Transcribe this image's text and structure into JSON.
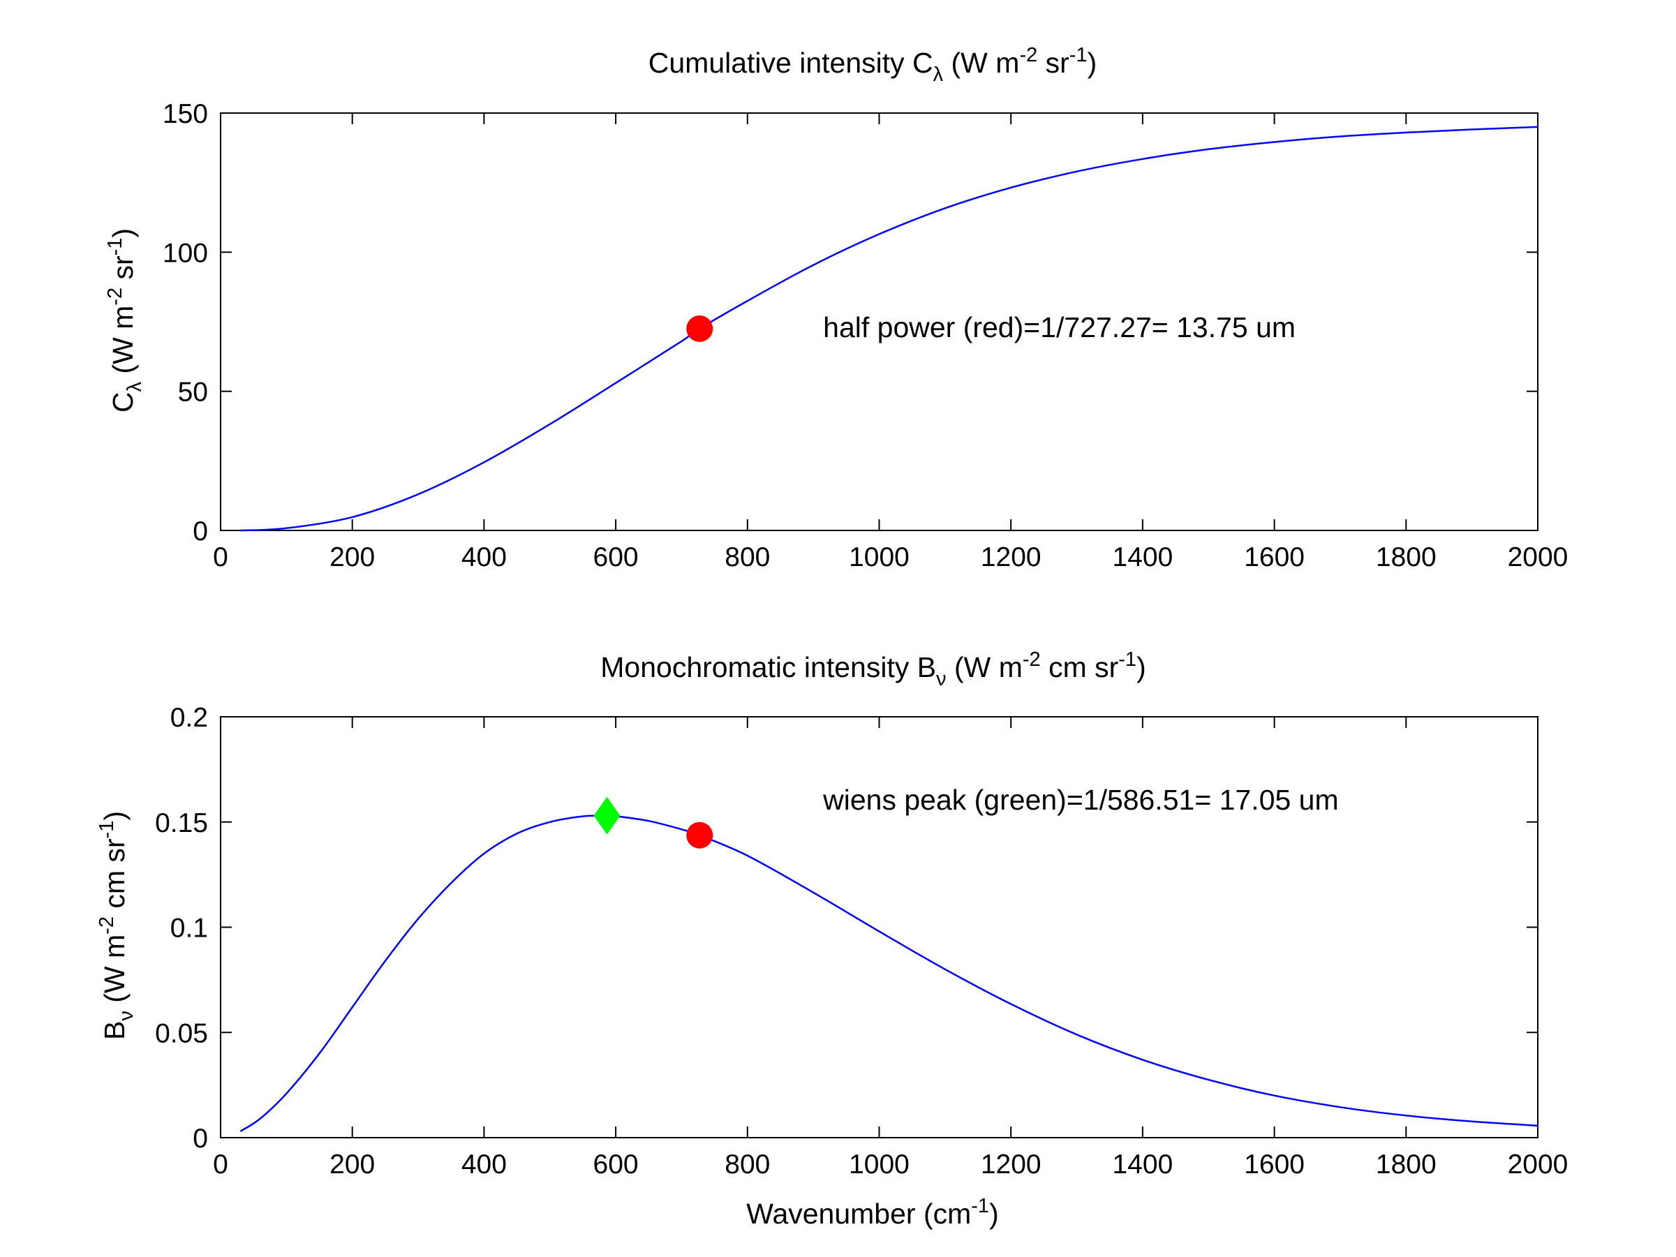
{
  "colors": {
    "series": "#0000ff",
    "half_power_marker": "#ff0000",
    "wien_peak_marker": "#00ff00"
  },
  "chart_data": [
    {
      "type": "line",
      "title": "Cumulative intensity C",
      "title_subscript": "λ",
      "title_units": " (W m",
      "title_sup1": "-2",
      "title_units2": " sr",
      "title_sup2": "-1",
      "title_end": ")",
      "ylabel": "C",
      "ylabel_subscript": "λ",
      "ylabel_units": " (W m",
      "ylabel_sup1": "-2",
      "ylabel_units2": " sr",
      "ylabel_sup2": "-1",
      "ylabel_end": ")",
      "xlim": [
        0,
        2000
      ],
      "ylim": [
        0,
        150
      ],
      "x_ticks": [
        "0",
        "200",
        "400",
        "600",
        "800",
        "1000",
        "1200",
        "1400",
        "1600",
        "1800",
        "2000"
      ],
      "y_ticks": [
        "0",
        "50",
        "100",
        "150"
      ],
      "x": [
        30,
        100,
        200,
        300,
        400,
        500,
        600,
        700,
        727.27,
        800,
        900,
        1000,
        1100,
        1200,
        1300,
        1400,
        1500,
        1600,
        1700,
        1800,
        1900,
        2000
      ],
      "y": [
        0.0,
        0.8,
        4.8,
        13.0,
        24.5,
        38.2,
        53.0,
        68.0,
        72.5,
        82.5,
        95.4,
        106.5,
        115.8,
        123.2,
        129.0,
        133.5,
        137.0,
        139.6,
        141.6,
        143.0,
        144.1,
        145.0
      ],
      "markers": [
        {
          "name": "half power",
          "x": 727.27,
          "y": 72.5,
          "shape": "circle",
          "color": "#ff0000"
        }
      ],
      "annotation": "half power (red)=1/727.27= 13.75 um",
      "annotation_pos": [
        900,
        73
      ]
    },
    {
      "type": "line",
      "title": "Monochromatic intensity B",
      "title_subscript": "ν",
      "title_units": " (W m",
      "title_sup1": "-2",
      "title_units2": " cm sr",
      "title_sup2": "-1",
      "title_end": ")",
      "ylabel": "B",
      "ylabel_subscript": "ν",
      "ylabel_units": " (W m",
      "ylabel_sup1": "-2",
      "ylabel_units2": " cm sr",
      "ylabel_sup2": "-1",
      "ylabel_end": ")",
      "xlabel": "Wavenumber (cm",
      "xlabel_sup": "-1",
      "xlabel_end": ")",
      "xlim": [
        0,
        2000
      ],
      "ylim": [
        0,
        0.2
      ],
      "x_ticks": [
        "0",
        "200",
        "400",
        "600",
        "800",
        "1000",
        "1200",
        "1400",
        "1600",
        "1800",
        "2000"
      ],
      "y_ticks": [
        "0",
        "0.05",
        "0.1",
        "0.15",
        "0.2"
      ],
      "x": [
        30,
        60,
        100,
        150,
        200,
        250,
        300,
        350,
        400,
        450,
        500,
        550,
        586.51,
        600,
        650,
        700,
        727.27,
        800,
        900,
        1000,
        1100,
        1200,
        1300,
        1400,
        1500,
        1600,
        1700,
        1800,
        1900,
        2000
      ],
      "y": [
        0.003,
        0.009,
        0.021,
        0.04,
        0.062,
        0.084,
        0.104,
        0.121,
        0.135,
        0.1445,
        0.15,
        0.1527,
        0.153,
        0.1528,
        0.1505,
        0.1465,
        0.1437,
        0.134,
        0.1165,
        0.098,
        0.08,
        0.0635,
        0.049,
        0.037,
        0.0275,
        0.02,
        0.0145,
        0.0105,
        0.0077,
        0.0057
      ],
      "markers": [
        {
          "name": "wiens peak",
          "x": 586.51,
          "y": 0.153,
          "shape": "diamond",
          "color": "#00ff00"
        },
        {
          "name": "half power",
          "x": 727.27,
          "y": 0.1437,
          "shape": "circle",
          "color": "#ff0000"
        }
      ],
      "annotation": "wiens peak (green)=1/586.51= 17.05 um",
      "annotation_pos": [
        900,
        0.1605
      ]
    }
  ]
}
